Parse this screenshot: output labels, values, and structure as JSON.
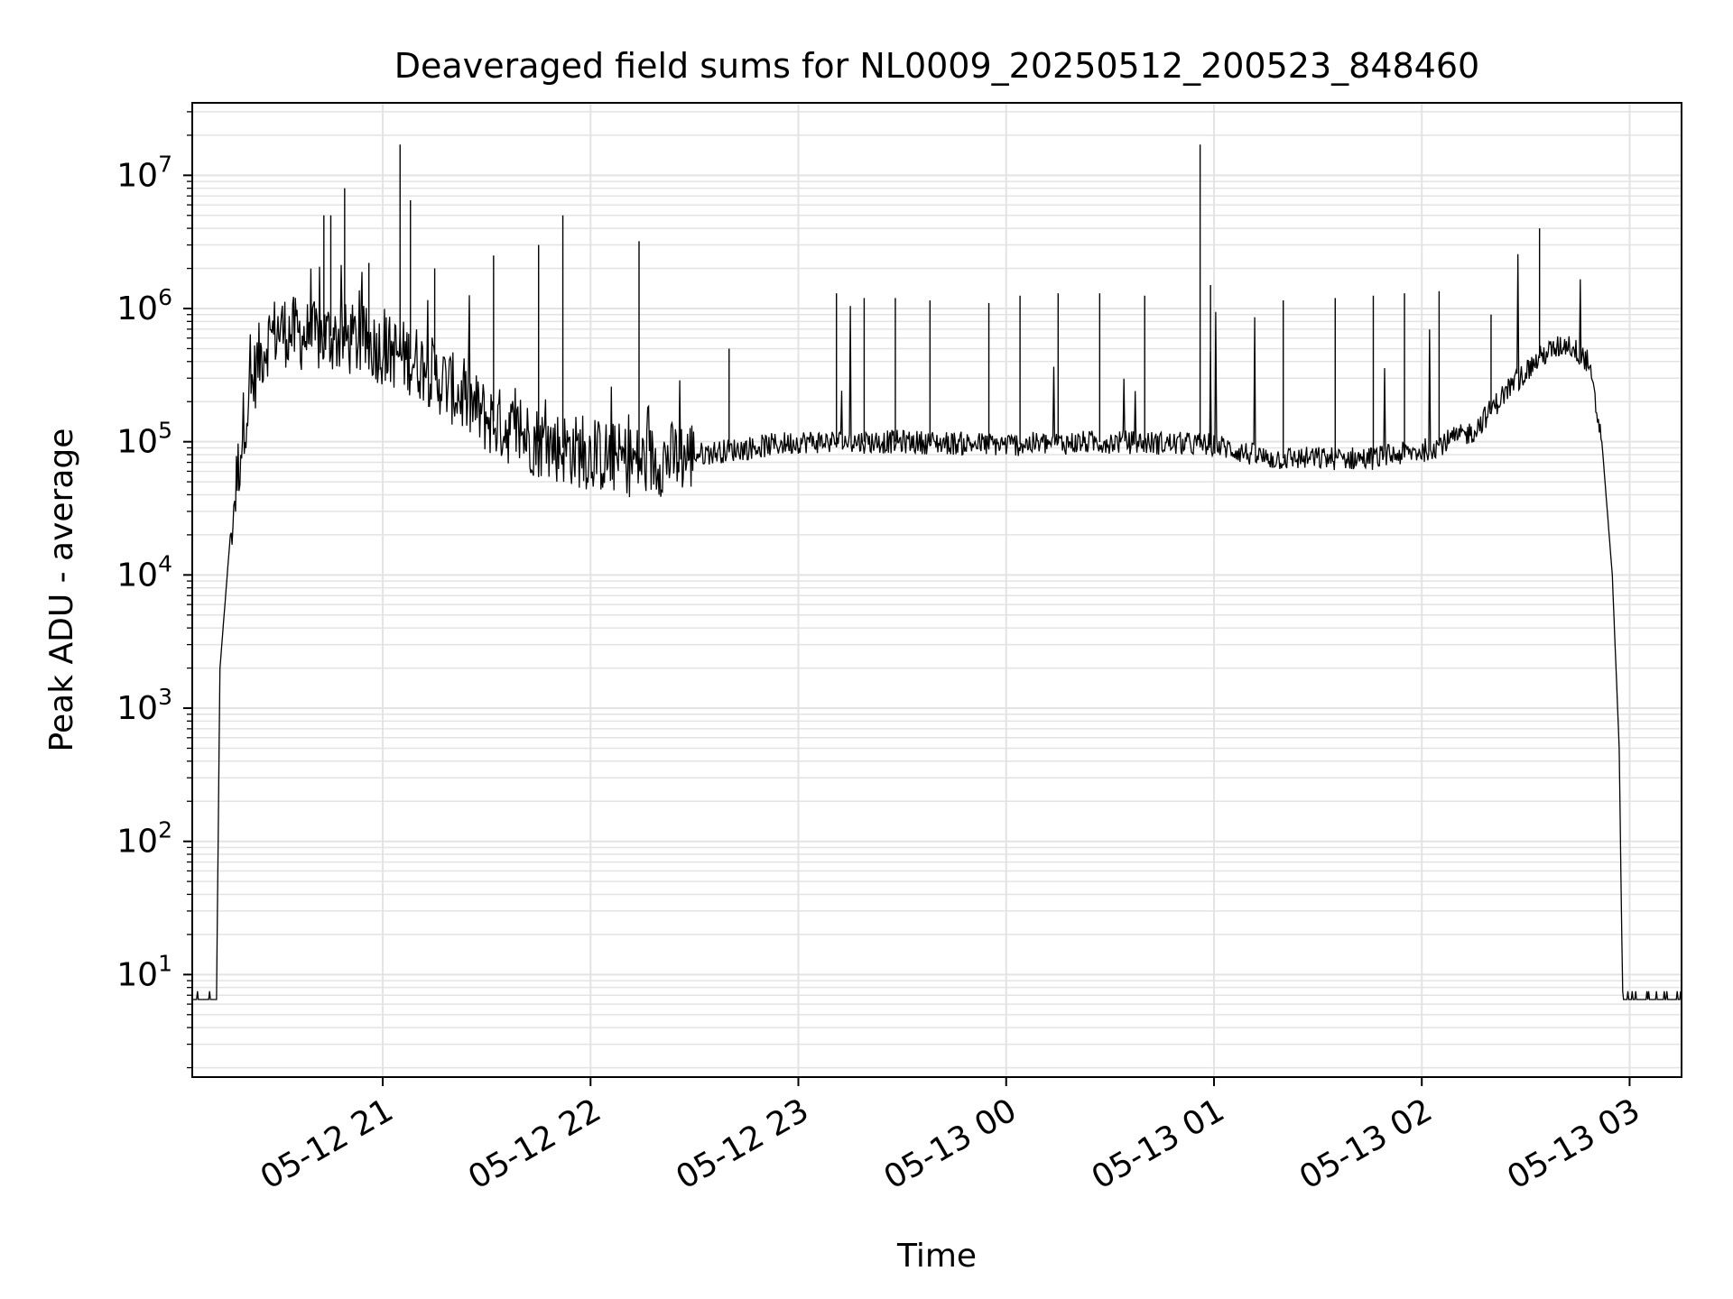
{
  "chart_data": {
    "type": "line",
    "title": "Deaveraged field sums for NL0009_20250512_200523_848460",
    "xlabel": "Time",
    "ylabel": "Peak ADU - average",
    "yscale": "log",
    "ylim": [
      1.7,
      35000000
    ],
    "xlim": [
      "2025-05-12 20:05",
      "2025-05-13 03:15"
    ],
    "grid": true,
    "line_color": "#000000",
    "grid_color": "#e3e3e3",
    "x_ticks": [
      {
        "t": "2025-05-12 21:00",
        "label": "05-12 21"
      },
      {
        "t": "2025-05-12 22:00",
        "label": "05-12 22"
      },
      {
        "t": "2025-05-12 23:00",
        "label": "05-12 23"
      },
      {
        "t": "2025-05-13 00:00",
        "label": "05-13 00"
      },
      {
        "t": "2025-05-13 01:00",
        "label": "05-13 01"
      },
      {
        "t": "2025-05-13 02:00",
        "label": "05-13 02"
      },
      {
        "t": "2025-05-13 03:00",
        "label": "05-13 03"
      }
    ],
    "y_ticks": [
      {
        "v": 10,
        "base": "10",
        "exp": "1"
      },
      {
        "v": 100,
        "base": "10",
        "exp": "2"
      },
      {
        "v": 1000,
        "base": "10",
        "exp": "3"
      },
      {
        "v": 10000,
        "base": "10",
        "exp": "4"
      },
      {
        "v": 100000,
        "base": "10",
        "exp": "5"
      },
      {
        "v": 1000000,
        "base": "10",
        "exp": "6"
      },
      {
        "v": 10000000,
        "base": "10",
        "exp": "7"
      }
    ],
    "series": [
      {
        "x": [
          "2025-05-12 20:05",
          "2025-05-12 20:12",
          "2025-05-12 20:13",
          "2025-05-12 20:16",
          "2025-05-12 20:20",
          "2025-05-12 20:24",
          "2025-05-12 20:27",
          "2025-05-12 20:30",
          "2025-05-12 20:35",
          "2025-05-12 20:40",
          "2025-05-12 20:45",
          "2025-05-12 20:50",
          "2025-05-12 20:55",
          "2025-05-12 21:00",
          "2025-05-12 21:10",
          "2025-05-12 21:20",
          "2025-05-12 21:30",
          "2025-05-12 21:45",
          "2025-05-12 22:00",
          "2025-05-12 22:15",
          "2025-05-12 22:30",
          "2025-05-12 23:00",
          "2025-05-12 23:30",
          "2025-05-13 00:00",
          "2025-05-13 00:30",
          "2025-05-13 01:00",
          "2025-05-13 01:15",
          "2025-05-13 01:30",
          "2025-05-13 01:45",
          "2025-05-13 02:00",
          "2025-05-13 02:15",
          "2025-05-13 02:25",
          "2025-05-13 02:35",
          "2025-05-13 02:42",
          "2025-05-13 02:48",
          "2025-05-13 02:52",
          "2025-05-13 02:55",
          "2025-05-13 02:57",
          "2025-05-13 02:58",
          "2025-05-13 03:15"
        ],
        "y": [
          6.5,
          6.5,
          2000,
          20000,
          150000,
          400000,
          600000,
          700000,
          650000,
          600000,
          620000,
          580000,
          560000,
          500000,
          400000,
          250000,
          150000,
          100000,
          80000,
          70000,
          80000,
          100000,
          100000,
          95000,
          100000,
          95000,
          75000,
          75000,
          75000,
          85000,
          120000,
          250000,
          450000,
          550000,
          400000,
          100000,
          10000,
          500,
          6.5,
          6.5
        ]
      }
    ],
    "spikes": [
      {
        "t": "2025-05-12 20:43",
        "y": 5000000
      },
      {
        "t": "2025-05-12 20:45",
        "y": 5000000
      },
      {
        "t": "2025-05-12 20:49",
        "y": 8000000
      },
      {
        "t": "2025-05-12 20:56",
        "y": 2200000
      },
      {
        "t": "2025-05-12 21:05",
        "y": 17000000
      },
      {
        "t": "2025-05-12 21:08",
        "y": 6500000
      },
      {
        "t": "2025-05-12 21:15",
        "y": 2000000
      },
      {
        "t": "2025-05-12 21:32",
        "y": 2500000
      },
      {
        "t": "2025-05-12 21:45",
        "y": 3000000
      },
      {
        "t": "2025-05-12 21:52",
        "y": 5000000
      },
      {
        "t": "2025-05-12 22:14",
        "y": 3200000
      },
      {
        "t": "2025-05-12 22:40",
        "y": 500000
      },
      {
        "t": "2025-05-12 23:11",
        "y": 1300000
      },
      {
        "t": "2025-05-12 23:19",
        "y": 1200000
      },
      {
        "t": "2025-05-12 23:28",
        "y": 1200000
      },
      {
        "t": "2025-05-12 23:38",
        "y": 1150000
      },
      {
        "t": "2025-05-12 23:55",
        "y": 1100000
      },
      {
        "t": "2025-05-13 00:04",
        "y": 1250000
      },
      {
        "t": "2025-05-13 00:15",
        "y": 1300000
      },
      {
        "t": "2025-05-13 00:27",
        "y": 1300000
      },
      {
        "t": "2025-05-13 00:40",
        "y": 1250000
      },
      {
        "t": "2025-05-13 00:56",
        "y": 17000000
      },
      {
        "t": "2025-05-13 00:59",
        "y": 1500000
      },
      {
        "t": "2025-05-13 01:20",
        "y": 1150000
      },
      {
        "t": "2025-05-13 01:35",
        "y": 1200000
      },
      {
        "t": "2025-05-13 01:46",
        "y": 1250000
      },
      {
        "t": "2025-05-13 01:55",
        "y": 1300000
      },
      {
        "t": "2025-05-13 02:05",
        "y": 1350000
      },
      {
        "t": "2025-05-13 02:20",
        "y": 900000
      },
      {
        "t": "2025-05-13 02:34",
        "y": 4000000
      }
    ]
  }
}
